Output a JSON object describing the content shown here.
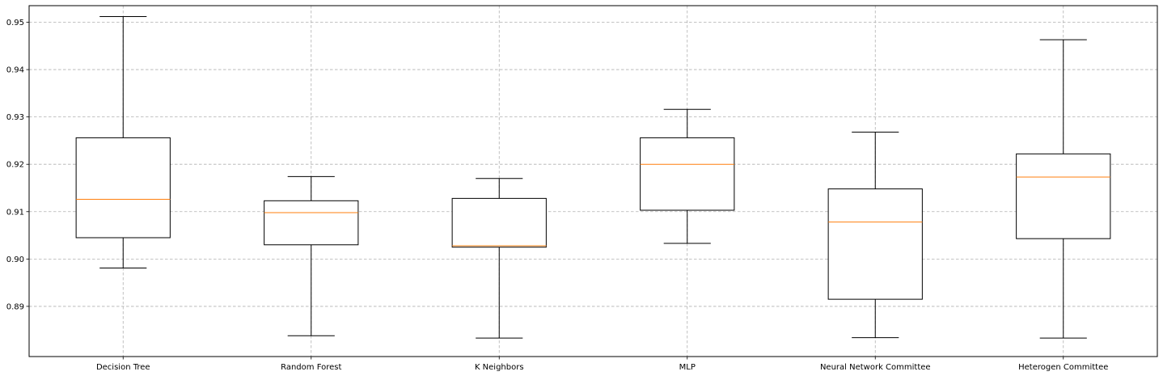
{
  "chart_data": {
    "type": "boxplot",
    "title": "",
    "xlabel": "",
    "ylabel": "",
    "ylim": [
      0.8794,
      0.9535
    ],
    "yticks": [
      0.89,
      0.9,
      0.91,
      0.92,
      0.93,
      0.94,
      0.95
    ],
    "ytick_labels": [
      "0.89",
      "0.90",
      "0.91",
      "0.92",
      "0.93",
      "0.94",
      "0.95"
    ],
    "grid": true,
    "categories": [
      "Decision Tree",
      "Random Forest",
      "K Neighbors",
      "MLP",
      "Neural Network Committee",
      "Heterogen Committee"
    ],
    "boxes": [
      {
        "whisker_low": 0.8981,
        "q1": 0.9045,
        "median": 0.9126,
        "q3": 0.9256,
        "whisker_high": 0.9512
      },
      {
        "whisker_low": 0.8838,
        "q1": 0.903,
        "median": 0.9098,
        "q3": 0.9123,
        "whisker_high": 0.9174
      },
      {
        "whisker_low": 0.8833,
        "q1": 0.9025,
        "median": 0.9028,
        "q3": 0.9128,
        "whisker_high": 0.917
      },
      {
        "whisker_low": 0.9033,
        "q1": 0.9103,
        "median": 0.92,
        "q3": 0.9256,
        "whisker_high": 0.9316
      },
      {
        "whisker_low": 0.8834,
        "q1": 0.8915,
        "median": 0.9078,
        "q3": 0.9148,
        "whisker_high": 0.9268
      },
      {
        "whisker_low": 0.8833,
        "q1": 0.9043,
        "median": 0.9173,
        "q3": 0.9222,
        "whisker_high": 0.9463
      }
    ],
    "colors": {
      "box": "#000000",
      "median": "#ff7f0e",
      "grid": "#b0b0b0"
    }
  }
}
